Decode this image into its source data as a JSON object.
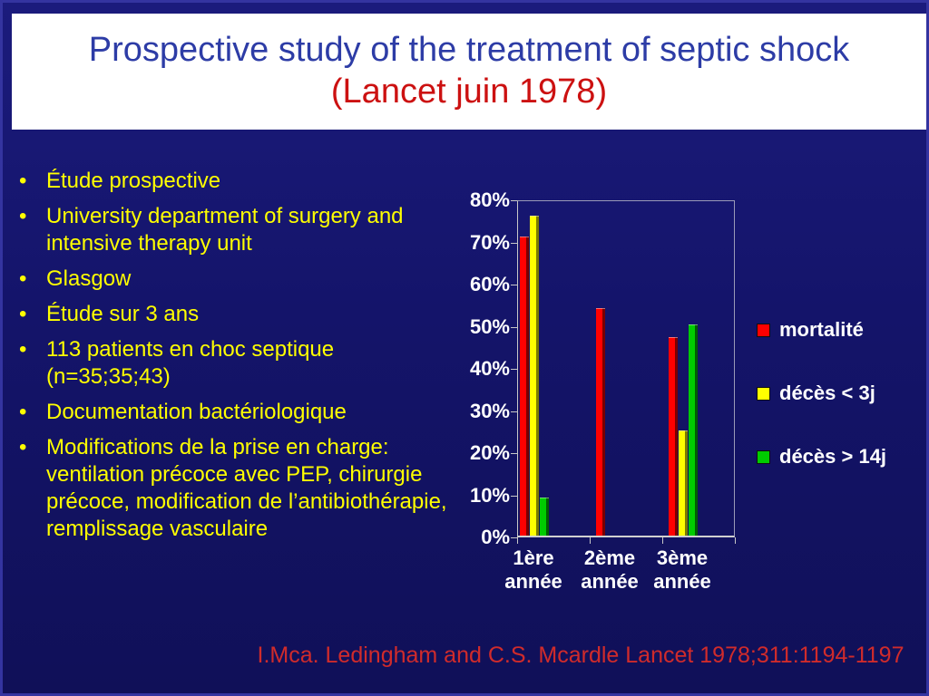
{
  "slide": {
    "title_line1": "Prospective study of the treatment of septic shock",
    "title_line2": "(Lancet juin 1978)",
    "citation": "I.Mca. Ledingham and C.S. Mcardle Lancet 1978;311:1194-1197"
  },
  "bullets": {
    "items": [
      {
        "text": "Étude prospective"
      },
      {
        "text": "University department of surgery and intensive therapy unit"
      },
      {
        "text": "Glasgow"
      },
      {
        "text": "Étude sur 3 ans"
      },
      {
        "text": "113 patients en choc septique (n=35;35;43)"
      },
      {
        "text": "Documentation bactériologique"
      },
      {
        "text": "Modifications de la prise en charge: ventilation précoce avec PEP, chirurgie précoce, modification de l’antibiothérapie, remplissage vasculaire"
      }
    ]
  },
  "chart_data": {
    "type": "bar",
    "title": "",
    "xlabel": "",
    "ylabel": "",
    "categories": [
      "1ère année",
      "2ème année",
      "3ème année"
    ],
    "series": [
      {
        "name": "mortalité",
        "color": "#FF0000",
        "shade": "#7A0000",
        "values": [
          71,
          54,
          47
        ]
      },
      {
        "name": "décès < 3j",
        "color": "#FFFF00",
        "shade": "#7A7A00",
        "values": [
          76,
          0,
          25
        ]
      },
      {
        "name": "décès > 14j",
        "color": "#00CC00",
        "shade": "#005E00",
        "values": [
          9,
          0,
          50
        ]
      }
    ],
    "ylim": [
      0,
      80
    ],
    "ytick_step": 10,
    "ytick_labels": [
      "0%",
      "10%",
      "20%",
      "30%",
      "40%",
      "50%",
      "60%",
      "70%",
      "80%"
    ],
    "legend_position": "right",
    "grid": false
  },
  "colors": {
    "background": "#14146A",
    "frame": "#3434A0",
    "banner": "#FFFFFF",
    "title_blue": "#2D3CA6",
    "title_red": "#CC1111",
    "bullet_yellow": "#FFFF00",
    "axis_text": "#FFFFFF",
    "citation_red": "#D02B2B"
  }
}
